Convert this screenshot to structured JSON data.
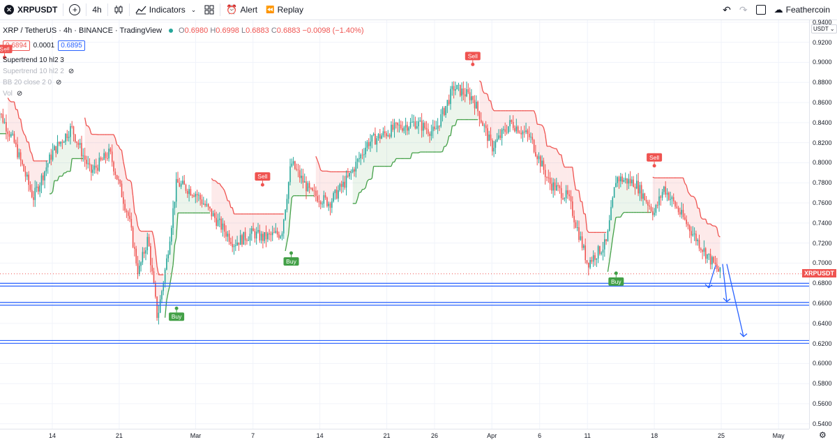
{
  "toolbar": {
    "symbol": "XRPUSDT",
    "interval": "4h",
    "indicators_label": "Indicators",
    "alert_label": "Alert",
    "replay_label": "Replay",
    "user_label": "Feathercoin"
  },
  "legend": {
    "title": "XRP / TetherUS · 4h · BINANCE · TradingView",
    "o_label": "O",
    "o_val": "0.6980",
    "h_label": "H",
    "h_val": "0.6998",
    "l_label": "L",
    "l_val": "0.6883",
    "c_label": "C",
    "c_val": "0.6883",
    "change": "−0.0098 (−1.40%)",
    "bid": "0.6894",
    "spread": "0.0001",
    "ask": "0.6895",
    "indicators": [
      "Supertrend 10 hl2 3",
      "Supertrend 10 hl2 2",
      "BB 20 close 2 0",
      "Vol"
    ]
  },
  "axis": {
    "currency": "USDT",
    "current_price_label": "XRPUSDT",
    "y_ticks": [
      "0.9400",
      "0.9200",
      "0.9000",
      "0.8800",
      "0.8600",
      "0.8400",
      "0.8200",
      "0.8000",
      "0.7800",
      "0.7600",
      "0.7400",
      "0.7200",
      "0.7000",
      "0.6800",
      "0.6600",
      "0.6400",
      "0.6200",
      "0.6000",
      "0.5800",
      "0.5600",
      "0.5400"
    ],
    "x_ticks": [
      "14",
      "21",
      "Mar",
      "7",
      "14",
      "21",
      "26",
      "Apr",
      "6",
      "11",
      "18",
      "25",
      "May"
    ]
  },
  "signals": {
    "sell": "Sell",
    "buy": "Buy"
  },
  "colors": {
    "up": "#26a69a",
    "down": "#ef5350",
    "supertrend_up": "#43a047",
    "supertrend_down": "#ef5350",
    "support_lines": "#2962ff"
  },
  "chart_data": {
    "type": "candlestick",
    "title": "XRP / TetherUS · 4h · BINANCE",
    "ylim": [
      0.535,
      0.942
    ],
    "y_scale": "linear",
    "grid": true,
    "current_price": 0.6894,
    "support_levels": [
      0.6785,
      0.6595,
      0.6215
    ],
    "price_path": [
      {
        "date": "2023-02-08",
        "price": 0.86
      },
      {
        "date": "2023-02-10",
        "price": 0.82
      },
      {
        "date": "2023-02-12",
        "price": 0.765
      },
      {
        "date": "2023-02-14",
        "price": 0.81
      },
      {
        "date": "2023-02-16",
        "price": 0.835
      },
      {
        "date": "2023-02-18",
        "price": 0.79
      },
      {
        "date": "2023-02-20",
        "price": 0.81
      },
      {
        "date": "2023-02-22",
        "price": 0.745
      },
      {
        "date": "2023-02-23",
        "price": 0.69
      },
      {
        "date": "2023-02-24",
        "price": 0.725
      },
      {
        "date": "2023-02-25",
        "price": 0.645
      },
      {
        "date": "2023-02-26",
        "price": 0.705
      },
      {
        "date": "2023-02-27",
        "price": 0.78
      },
      {
        "date": "2023-03-01",
        "price": 0.77
      },
      {
        "date": "2023-03-03",
        "price": 0.745
      },
      {
        "date": "2023-03-05",
        "price": 0.72
      },
      {
        "date": "2023-03-07",
        "price": 0.73
      },
      {
        "date": "2023-03-08",
        "price": 0.725
      },
      {
        "date": "2023-03-10",
        "price": 0.73
      },
      {
        "date": "2023-03-11",
        "price": 0.8
      },
      {
        "date": "2023-03-13",
        "price": 0.77
      },
      {
        "date": "2023-03-15",
        "price": 0.76
      },
      {
        "date": "2023-03-17",
        "price": 0.785
      },
      {
        "date": "2023-03-19",
        "price": 0.82
      },
      {
        "date": "2023-03-22",
        "price": 0.835
      },
      {
        "date": "2023-03-24",
        "price": 0.84
      },
      {
        "date": "2023-03-26",
        "price": 0.83
      },
      {
        "date": "2023-03-28",
        "price": 0.875
      },
      {
        "date": "2023-03-30",
        "price": 0.865
      },
      {
        "date": "2023-04-01",
        "price": 0.815
      },
      {
        "date": "2023-04-03",
        "price": 0.84
      },
      {
        "date": "2023-04-05",
        "price": 0.825
      },
      {
        "date": "2023-04-07",
        "price": 0.78
      },
      {
        "date": "2023-04-09",
        "price": 0.765
      },
      {
        "date": "2023-04-11",
        "price": 0.7
      },
      {
        "date": "2023-04-13",
        "price": 0.72
      },
      {
        "date": "2023-04-14",
        "price": 0.785
      },
      {
        "date": "2023-04-16",
        "price": 0.78
      },
      {
        "date": "2023-04-18",
        "price": 0.75
      },
      {
        "date": "2023-04-19",
        "price": 0.775
      },
      {
        "date": "2023-04-21",
        "price": 0.745
      },
      {
        "date": "2023-04-23",
        "price": 0.715
      },
      {
        "date": "2023-04-25",
        "price": 0.6883
      }
    ],
    "signals": [
      {
        "type": "Sell",
        "date": "2023-02-09",
        "price": 0.905
      },
      {
        "type": "Buy",
        "date": "2023-02-27",
        "price": 0.655
      },
      {
        "type": "Sell",
        "date": "2023-03-08",
        "price": 0.778
      },
      {
        "type": "Buy",
        "date": "2023-03-11",
        "price": 0.71
      },
      {
        "type": "Sell",
        "date": "2023-03-30",
        "price": 0.898
      },
      {
        "type": "Buy",
        "date": "2023-04-14",
        "price": 0.69
      },
      {
        "type": "Sell",
        "date": "2023-04-18",
        "price": 0.797
      }
    ]
  }
}
